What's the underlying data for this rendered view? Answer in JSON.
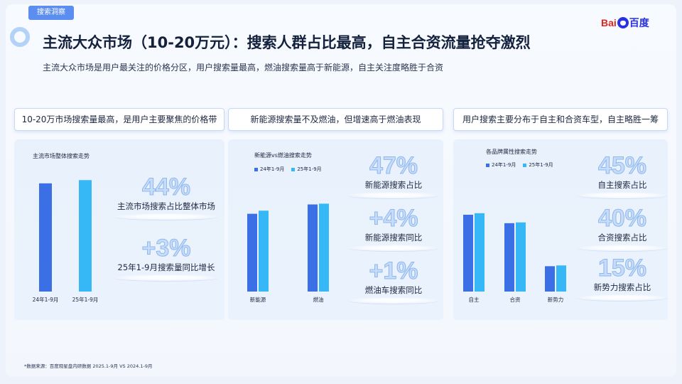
{
  "header": {
    "tag": "搜索洞察",
    "logo": {
      "part1": "Bai",
      "part2": "百度"
    },
    "title": "主流大众市场（10-20万元）：搜索人群占比最高，自主合资流量抢夺激烈",
    "subtitle": "主流大众市场是用户最关注的价格分区，用户搜索量最高，燃油搜索量高于新能源，自主关注度略胜于合资"
  },
  "columns": [
    {
      "heading": "10-20万市场搜索量最高，是用户主要聚焦的价格带",
      "chart_title": "主流市场整体搜索走势",
      "stats": [
        {
          "value": "44%",
          "label": "主流市场搜索占比整体市场"
        },
        {
          "value": "+3%",
          "label": "25年1-9月搜索量同比增长"
        }
      ]
    },
    {
      "heading": "新能源搜索量不及燃油，但增速高于燃油表现",
      "chart_title": "新能源vs燃油搜索走势",
      "legend": [
        "24年1-9月",
        "25年1-9月"
      ],
      "stats": [
        {
          "value": "47%",
          "label": "新能源搜索占比"
        },
        {
          "value": "+4%",
          "label": "新能源搜索同比"
        },
        {
          "value": "+1%",
          "label": "燃油车搜索同比"
        }
      ]
    },
    {
      "heading": "用户搜索主要分布于自主和合资车型，自主略胜一筹",
      "chart_title": "各品牌属性搜索走势",
      "legend": [
        "24年1-9月",
        "25年1-9月"
      ],
      "stats": [
        {
          "value": "45%",
          "label": "自主搜索占比"
        },
        {
          "value": "40%",
          "label": "合资搜索占比"
        },
        {
          "value": "15%",
          "label": "新势力搜索占比"
        }
      ]
    }
  ],
  "footnote": "*数据来源：百度观星盘内研数据 2025.1-9月 VS 2024.1-9月",
  "colors": {
    "series_2024": "#3b6fe6",
    "series_2025": "#35b8f5",
    "accent": "#5b8ef0"
  },
  "chart_data": [
    {
      "type": "bar",
      "title": "主流市场整体搜索走势",
      "categories": [
        "24年1-9月",
        "25年1-9月"
      ],
      "values": [
        100,
        103
      ],
      "ylim": [
        0,
        115
      ],
      "colors": [
        "#3b6fe6",
        "#35b8f5"
      ],
      "grid": false
    },
    {
      "type": "bar",
      "title": "新能源vs燃油搜索走势",
      "categories": [
        "新能源",
        "燃油"
      ],
      "series": [
        {
          "name": "24年1-9月",
          "values": [
            100,
            112
          ]
        },
        {
          "name": "25年1-9月",
          "values": [
            104,
            113
          ]
        }
      ],
      "ylim": [
        0,
        160
      ],
      "legend": "top-left",
      "grid": false
    },
    {
      "type": "bar",
      "title": "各品牌属性搜索走势",
      "categories": [
        "自主",
        "合资",
        "新势力"
      ],
      "series": [
        {
          "name": "24年1-9月",
          "values": [
            100,
            89,
            33
          ]
        },
        {
          "name": "25年1-9月",
          "values": [
            102,
            90,
            34
          ]
        }
      ],
      "ylim": [
        0,
        162
      ],
      "legend": "top-left",
      "grid": false
    }
  ]
}
